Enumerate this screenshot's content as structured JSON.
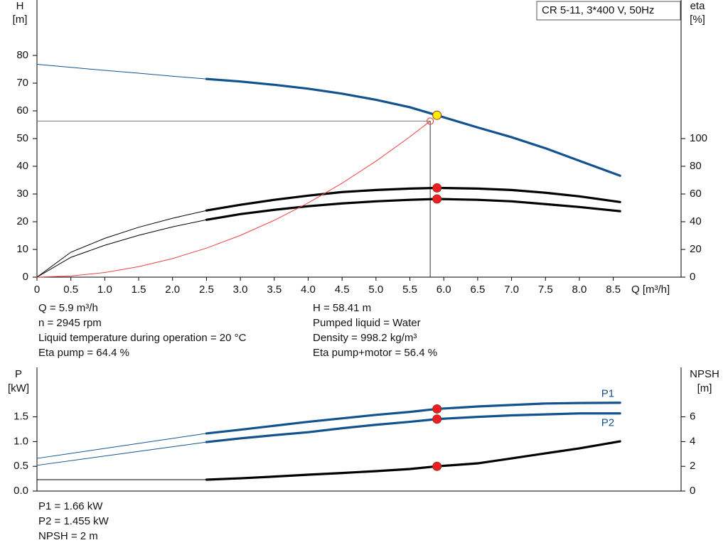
{
  "chart_data": [
    {
      "type": "line",
      "title": "CR 5-11, 3*400 V, 50Hz",
      "xlabel": "Q [m³/h]",
      "ylabel": "H",
      "yunit": "[m]",
      "y2label": "eta",
      "y2unit": "[%]",
      "xlim": [
        0,
        9.5
      ],
      "ylim": [
        0,
        100
      ],
      "y2lim": [
        0,
        200
      ],
      "xticks": [
        0,
        0.5,
        {
          "value": 1,
          "label": "1.0"
        },
        1.5,
        {
          "value": 2,
          "label": "2.0"
        },
        2.5,
        {
          "value": 3,
          "label": "3.0"
        },
        3.5,
        {
          "value": 4,
          "label": "4.0"
        },
        4.5,
        {
          "value": 5,
          "label": "5.0"
        },
        5.5,
        {
          "value": 6,
          "label": "6.0"
        },
        6.5,
        {
          "value": 7,
          "label": "7.0"
        },
        7.5,
        {
          "value": 8,
          "label": "8.0"
        },
        8.5
      ],
      "yticks": [
        0,
        10,
        20,
        30,
        40,
        50,
        60,
        70,
        80
      ],
      "y2ticks": [
        0,
        20,
        40,
        60,
        80,
        100
      ],
      "operating_range": [
        2.5,
        8.6
      ],
      "series": [
        {
          "color": "#12528e",
          "x": [
            0,
            0.5,
            1,
            1.5,
            2,
            2.5,
            3,
            3.5,
            4,
            4.5,
            5,
            5.5,
            5.9,
            6.5,
            7,
            7.5,
            8,
            8.6
          ],
          "values": [
            76.8,
            75.7,
            74.6,
            73.6,
            72.5,
            71.5,
            70.6,
            69.4,
            68.0,
            66.2,
            64.0,
            61.3,
            58.41,
            54.0,
            50.5,
            46.5,
            42.0,
            36.6
          ],
          "point": {
            "x": 5.9,
            "y": 58.41
          },
          "point_color": "#ffee00"
        },
        {
          "color": "#000000",
          "axis": "y2",
          "x": [
            0,
            0.5,
            1,
            1.5,
            2,
            2.5,
            3,
            3.5,
            4,
            4.5,
            5,
            5.5,
            5.9,
            6.5,
            7,
            7.5,
            8,
            8.6
          ],
          "values": [
            0,
            18,
            28,
            36,
            42.5,
            48.1,
            52.2,
            55.8,
            58.8,
            61.4,
            62.9,
            63.9,
            64.4,
            63.9,
            62.9,
            60.9,
            58.3,
            54.2
          ],
          "point": {
            "x": 5.9,
            "y": 64.4
          },
          "point_color": "#ee1c25"
        },
        {
          "color": "#000000",
          "axis": "y2",
          "x": [
            0,
            0.5,
            1,
            1.5,
            2,
            2.5,
            3,
            3.5,
            4,
            4.5,
            5,
            5.5,
            5.9,
            6.5,
            7,
            7.5,
            8,
            8.6
          ],
          "values": [
            0,
            14.3,
            23,
            30.2,
            36.3,
            41.4,
            45.5,
            48.6,
            51.2,
            53.2,
            54.7,
            55.8,
            56.4,
            55.8,
            54.7,
            52.7,
            50.6,
            47.6
          ],
          "point": {
            "x": 5.9,
            "y": 56.4
          },
          "point_color": "#ee1c25"
        },
        {
          "color": "#f04040",
          "role": "system-curve",
          "x": [
            0,
            0.5,
            1,
            1.5,
            2,
            2.5,
            3,
            3.5,
            4,
            4.5,
            5,
            5.5,
            5.8
          ],
          "values": [
            0,
            0.42,
            1.67,
            3.77,
            6.7,
            10.46,
            15.07,
            20.51,
            26.78,
            33.9,
            41.85,
            50.64,
            56.3
          ]
        }
      ],
      "duty_point": {
        "x": 5.8,
        "y": 56.3,
        "color": "#e03030"
      },
      "info": [
        [
          "Q = 5.9 m³/h",
          "n = 2945 rpm",
          "Liquid temperature during operation = 20 °C",
          "Eta pump = 64.4 %"
        ],
        [
          "H = 58.41 m",
          "Pumped liquid = Water",
          "Density = 998.2 kg/m³",
          "Eta pump+motor = 56.4 %"
        ]
      ]
    },
    {
      "type": "line",
      "ylabel": "P",
      "yunit": "[kW]",
      "y2label": "NPSH",
      "y2unit": "[m]",
      "xlim": [
        0,
        9.5
      ],
      "ylim": [
        0,
        2.5
      ],
      "y2lim": [
        0,
        10
      ],
      "yticks": [
        {
          "value": 0,
          "label": "0.0"
        },
        0.5,
        {
          "value": 1,
          "label": "1.0"
        },
        1.5
      ],
      "y2ticks": [
        0,
        2,
        4,
        6
      ],
      "operating_range": [
        2.5,
        8.6
      ],
      "series": [
        {
          "name": "P1",
          "color": "#12528e",
          "x": [
            0,
            2.5,
            3,
            3.5,
            4,
            4.5,
            5,
            5.5,
            5.9,
            6.5,
            7,
            7.5,
            8,
            8.6
          ],
          "values": [
            0.66,
            1.165,
            1.24,
            1.32,
            1.4,
            1.47,
            1.54,
            1.6,
            1.66,
            1.71,
            1.74,
            1.77,
            1.78,
            1.785
          ],
          "point": {
            "x": 5.9,
            "y": 1.66
          },
          "point_color": "#ee1c25"
        },
        {
          "name": "P2",
          "color": "#12528e",
          "x": [
            0,
            2.5,
            3,
            3.5,
            4,
            4.5,
            5,
            5.5,
            5.9,
            6.5,
            7,
            7.5,
            8,
            8.6
          ],
          "values": [
            0.52,
            0.99,
            1.065,
            1.13,
            1.19,
            1.27,
            1.34,
            1.4,
            1.455,
            1.5,
            1.53,
            1.55,
            1.57,
            1.57
          ],
          "point": {
            "x": 5.9,
            "y": 1.455
          },
          "point_color": "#ee1c25"
        },
        {
          "color": "#000000",
          "axis": "y2",
          "x": [
            0,
            2.5,
            3,
            3.5,
            4,
            4.5,
            5,
            5.5,
            5.9,
            6.5,
            7,
            7.5,
            8,
            8.6
          ],
          "values": [
            0.92,
            0.92,
            1.03,
            1.17,
            1.32,
            1.46,
            1.61,
            1.78,
            2.0,
            2.24,
            2.64,
            3.05,
            3.45,
            4.02
          ],
          "point": {
            "x": 5.9,
            "y": 2
          },
          "point_color": "#ee1c25"
        }
      ],
      "info": [
        [
          "P1 = 1.66 kW",
          "P2 = 1.455 kW",
          "NPSH = 2 m"
        ]
      ]
    }
  ]
}
